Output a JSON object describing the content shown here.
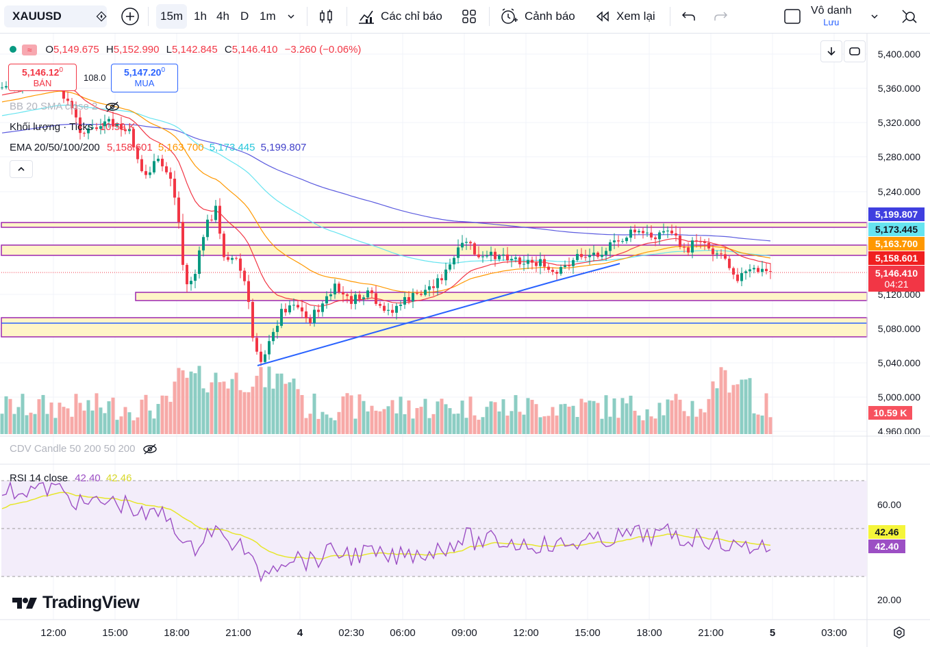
{
  "toolbar": {
    "symbol": "XAUUSD",
    "timeframes": [
      "15m",
      "1h",
      "4h",
      "D",
      "1m"
    ],
    "indicators_label": "Các chỉ báo",
    "alerts_label": "Cảnh báo",
    "replay_label": "Xem lại",
    "account_name": "Vô danh",
    "account_sub": "Lưu"
  },
  "legend": {
    "ohlc": {
      "o_label": "O",
      "o": "5,149.675",
      "h_label": "H",
      "h": "5,152.990",
      "l_label": "L",
      "l": "5,142.845",
      "c_label": "C",
      "c": "5,146.410",
      "change": "−3.260 (−0.06%)"
    },
    "sell_price_main": "5,146.12",
    "sell_price_sup": "0",
    "sell_label": "BÁN",
    "spread": "108.0",
    "buy_price_main": "5,147.20",
    "buy_price_sup": "0",
    "buy_label": "MUA",
    "bb": "BB 20 SMA close 2",
    "volume_label": "Khối lượng · Ticks",
    "volume_value": "10.59 K",
    "ema_label": "EMA 20/50/100/200",
    "ema20": "5,158.601",
    "ema50": "5,163.700",
    "ema100": "5,173.445",
    "ema200": "5,199.807",
    "cdv": "CDV Candle 50 200 50 200",
    "rsi_label": "RSI 14 close",
    "rsi_value": "42.40",
    "rsi_ma": "42.46"
  },
  "price_axis": [
    "5,400.000",
    "5,360.000",
    "5,320.000",
    "5,280.000",
    "5,240.000",
    "5,120.000",
    "5,080.000",
    "5,040.000",
    "5,000.000",
    "4,960.000"
  ],
  "price_tags": {
    "ema200": "5,199.807",
    "ema100": "5,173.445",
    "ema50": "5,163.700",
    "ema20": "5,158.601",
    "last": "5,146.410",
    "countdown": "04:21",
    "volume": "10.59 K"
  },
  "rsi_axis": [
    "60.00",
    "20.00"
  ],
  "rsi_tags": {
    "ma": "42.46",
    "rsi": "42.40"
  },
  "time_axis": [
    "12:00",
    "15:00",
    "18:00",
    "21:00",
    "4",
    "02:30",
    "06:00",
    "09:00",
    "12:00",
    "15:00",
    "18:00",
    "21:00",
    "5",
    "03:00"
  ],
  "brand": "TradingView",
  "colors": {
    "up": "#089981",
    "down": "#f23645",
    "ema20": "#f23645",
    "ema50": "#ff9800",
    "ema100": "#66e4f0",
    "ema200": "#5b5bdf",
    "rsi": "#9c4fc4",
    "rsi_ma": "#e6e62a",
    "zone": "#fff5c7",
    "zone_border": "#9c27b0",
    "trend": "#2962ff"
  }
}
